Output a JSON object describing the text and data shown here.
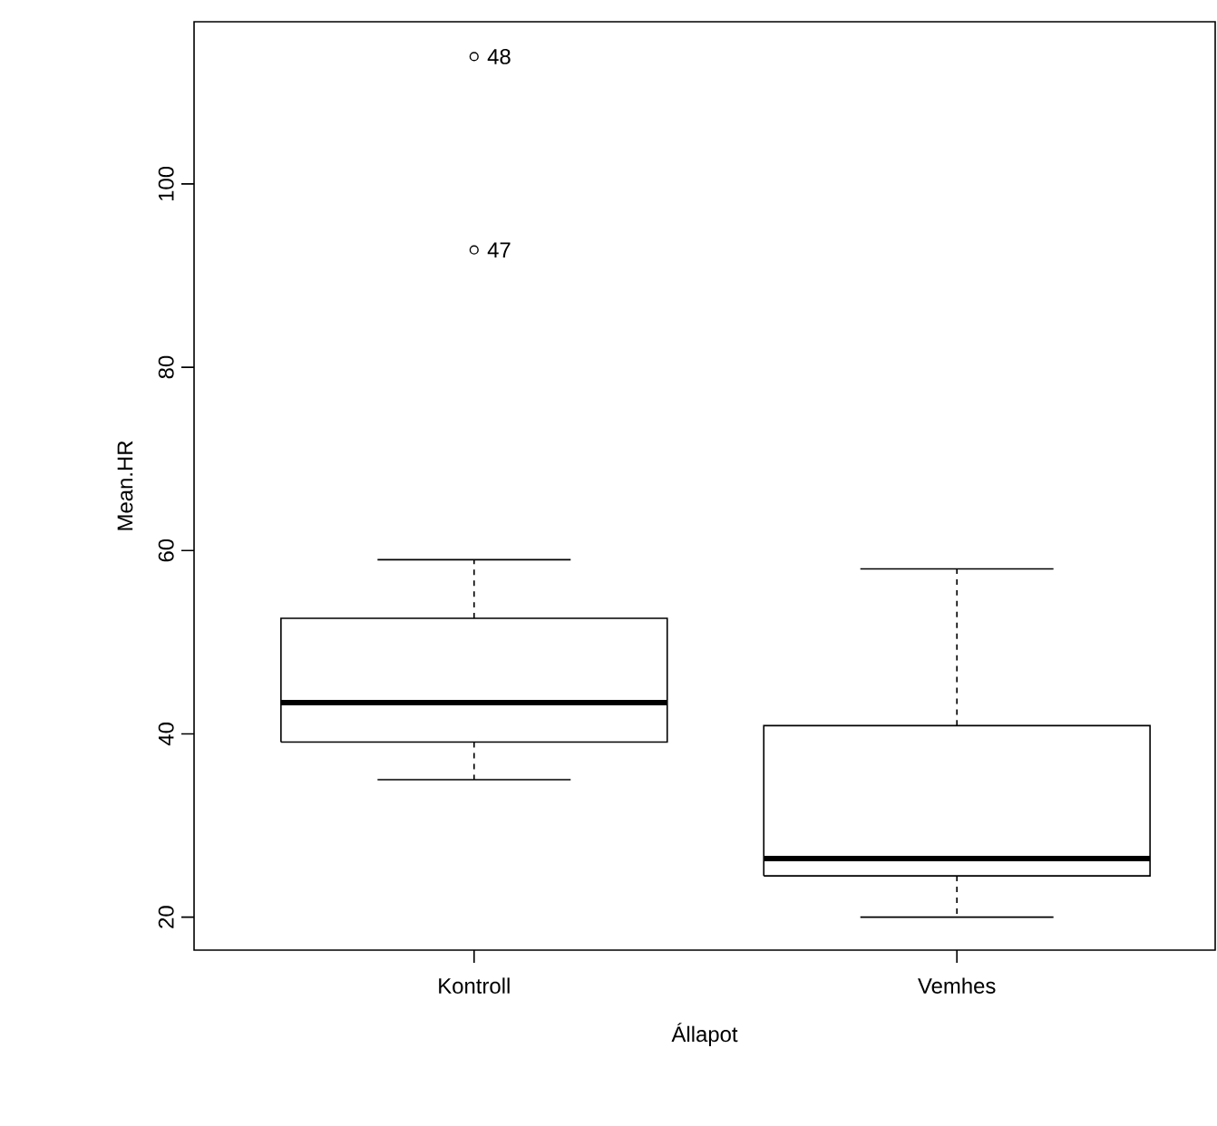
{
  "chart_data": {
    "type": "box",
    "xlabel": "Állapot",
    "ylabel": "Mean.HR",
    "categories": [
      "Kontroll",
      "Vemhes"
    ],
    "boxes": [
      {
        "low": 35.0,
        "q1": 39.1,
        "median": 43.4,
        "q3": 52.6,
        "high": 59.0,
        "outliers": [
          113.9,
          92.8
        ]
      },
      {
        "low": 20.0,
        "q1": 24.5,
        "median": 26.4,
        "q3": 40.9,
        "high": 58.0
      }
    ],
    "ylim": [
      16.4,
      117.7
    ],
    "yticks": [
      20,
      40,
      60,
      80,
      100
    ],
    "annotations": [
      "48",
      "47"
    ]
  }
}
